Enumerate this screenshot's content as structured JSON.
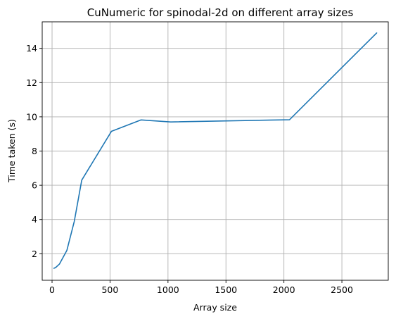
{
  "chart_data": {
    "type": "line",
    "title": "CuNumeric for spinodal-2d on different array sizes",
    "xlabel": "Array size",
    "ylabel": "Time taken (s)",
    "xlim": [
      -85,
      2900
    ],
    "ylim": [
      0.45,
      15.55
    ],
    "xticks": [
      0,
      500,
      1000,
      1500,
      2000,
      2500
    ],
    "yticks": [
      2,
      4,
      6,
      8,
      10,
      12,
      14
    ],
    "grid": true,
    "series": [
      {
        "color": "#1f77b4",
        "x": [
          16,
          32,
          64,
          128,
          192,
          256,
          512,
          768,
          1024,
          2048,
          2800
        ],
        "y": [
          1.15,
          1.2,
          1.4,
          2.2,
          3.9,
          6.3,
          9.15,
          9.82,
          9.7,
          9.83,
          14.9
        ]
      }
    ]
  }
}
